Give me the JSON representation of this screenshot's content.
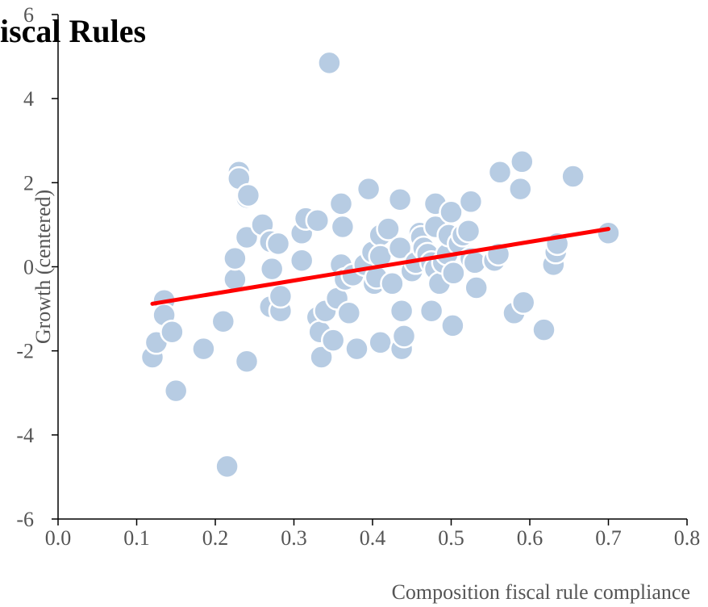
{
  "chart_data": {
    "type": "scatter",
    "title": "iscal Rules",
    "xlabel": "Composition fiscal rule compliance",
    "ylabel": "Growth (centered)",
    "xlim": [
      0.0,
      0.8
    ],
    "ylim": [
      -6,
      6
    ],
    "x_ticks": [
      "0.0",
      "0.1",
      "0.2",
      "0.3",
      "0.4",
      "0.5",
      "0.6",
      "0.7",
      "0.8"
    ],
    "y_ticks": [
      "6",
      "4",
      "2",
      "0",
      "-2",
      "-4",
      "-6"
    ],
    "grid": false,
    "colors": {
      "points": "#b7cce3",
      "point_edge": "#ffffff",
      "fit_line": "#ff0000",
      "axis": "#000000"
    },
    "series": [
      {
        "kind": "points",
        "points": [
          [
            0.12,
            -2.15
          ],
          [
            0.125,
            -1.8
          ],
          [
            0.135,
            -0.8
          ],
          [
            0.135,
            -1.15
          ],
          [
            0.145,
            -1.55
          ],
          [
            0.15,
            -2.95
          ],
          [
            0.185,
            -1.95
          ],
          [
            0.21,
            -1.3
          ],
          [
            0.215,
            -4.75
          ],
          [
            0.225,
            -0.3
          ],
          [
            0.225,
            0.2
          ],
          [
            0.23,
            2.25
          ],
          [
            0.23,
            2.1
          ],
          [
            0.24,
            1.65
          ],
          [
            0.242,
            1.7
          ],
          [
            0.24,
            0.7
          ],
          [
            0.24,
            -2.25
          ],
          [
            0.26,
            1.0
          ],
          [
            0.27,
            -0.95
          ],
          [
            0.27,
            0.6
          ],
          [
            0.272,
            -0.05
          ],
          [
            0.28,
            0.55
          ],
          [
            0.283,
            -1.05
          ],
          [
            0.283,
            -0.7
          ],
          [
            0.31,
            0.15
          ],
          [
            0.31,
            0.8
          ],
          [
            0.315,
            1.15
          ],
          [
            0.33,
            1.1
          ],
          [
            0.33,
            -1.2
          ],
          [
            0.333,
            -1.55
          ],
          [
            0.335,
            -2.15
          ],
          [
            0.34,
            -1.05
          ],
          [
            0.345,
            4.85
          ],
          [
            0.35,
            -1.75
          ],
          [
            0.355,
            -0.75
          ],
          [
            0.36,
            1.5
          ],
          [
            0.36,
            0.05
          ],
          [
            0.362,
            0.95
          ],
          [
            0.365,
            -0.3
          ],
          [
            0.37,
            -1.1
          ],
          [
            0.375,
            -0.2
          ],
          [
            0.38,
            -1.95
          ],
          [
            0.39,
            0.05
          ],
          [
            0.395,
            1.85
          ],
          [
            0.4,
            0.35
          ],
          [
            0.402,
            -0.4
          ],
          [
            0.405,
            -0.25
          ],
          [
            0.41,
            0.75
          ],
          [
            0.41,
            0.25
          ],
          [
            0.41,
            -1.8
          ],
          [
            0.42,
            0.9
          ],
          [
            0.425,
            -0.4
          ],
          [
            0.435,
            1.6
          ],
          [
            0.435,
            0.45
          ],
          [
            0.437,
            -1.05
          ],
          [
            0.437,
            -1.95
          ],
          [
            0.44,
            -1.65
          ],
          [
            0.45,
            -0.1
          ],
          [
            0.455,
            0.1
          ],
          [
            0.46,
            0.8
          ],
          [
            0.462,
            0.7
          ],
          [
            0.465,
            0.45
          ],
          [
            0.47,
            0.3
          ],
          [
            0.475,
            -1.05
          ],
          [
            0.475,
            0.1
          ],
          [
            0.48,
            -0.05
          ],
          [
            0.48,
            0.95
          ],
          [
            0.48,
            1.5
          ],
          [
            0.485,
            -0.4
          ],
          [
            0.49,
            0.1
          ],
          [
            0.495,
            0.3
          ],
          [
            0.497,
            0.75
          ],
          [
            0.5,
            1.3
          ],
          [
            0.502,
            -1.4
          ],
          [
            0.503,
            -0.15
          ],
          [
            0.51,
            0.55
          ],
          [
            0.515,
            0.75
          ],
          [
            0.522,
            0.85
          ],
          [
            0.525,
            1.55
          ],
          [
            0.525,
            0.2
          ],
          [
            0.53,
            0.1
          ],
          [
            0.532,
            -0.5
          ],
          [
            0.555,
            0.15
          ],
          [
            0.56,
            0.3
          ],
          [
            0.562,
            2.25
          ],
          [
            0.58,
            -1.1
          ],
          [
            0.588,
            1.85
          ],
          [
            0.59,
            2.5
          ],
          [
            0.592,
            -0.85
          ],
          [
            0.618,
            -1.5
          ],
          [
            0.63,
            0.05
          ],
          [
            0.633,
            0.35
          ],
          [
            0.635,
            0.55
          ],
          [
            0.655,
            2.15
          ],
          [
            0.7,
            0.8
          ]
        ]
      },
      {
        "kind": "fit_line",
        "points": [
          [
            0.12,
            -0.88
          ],
          [
            0.7,
            0.9
          ]
        ]
      }
    ]
  }
}
